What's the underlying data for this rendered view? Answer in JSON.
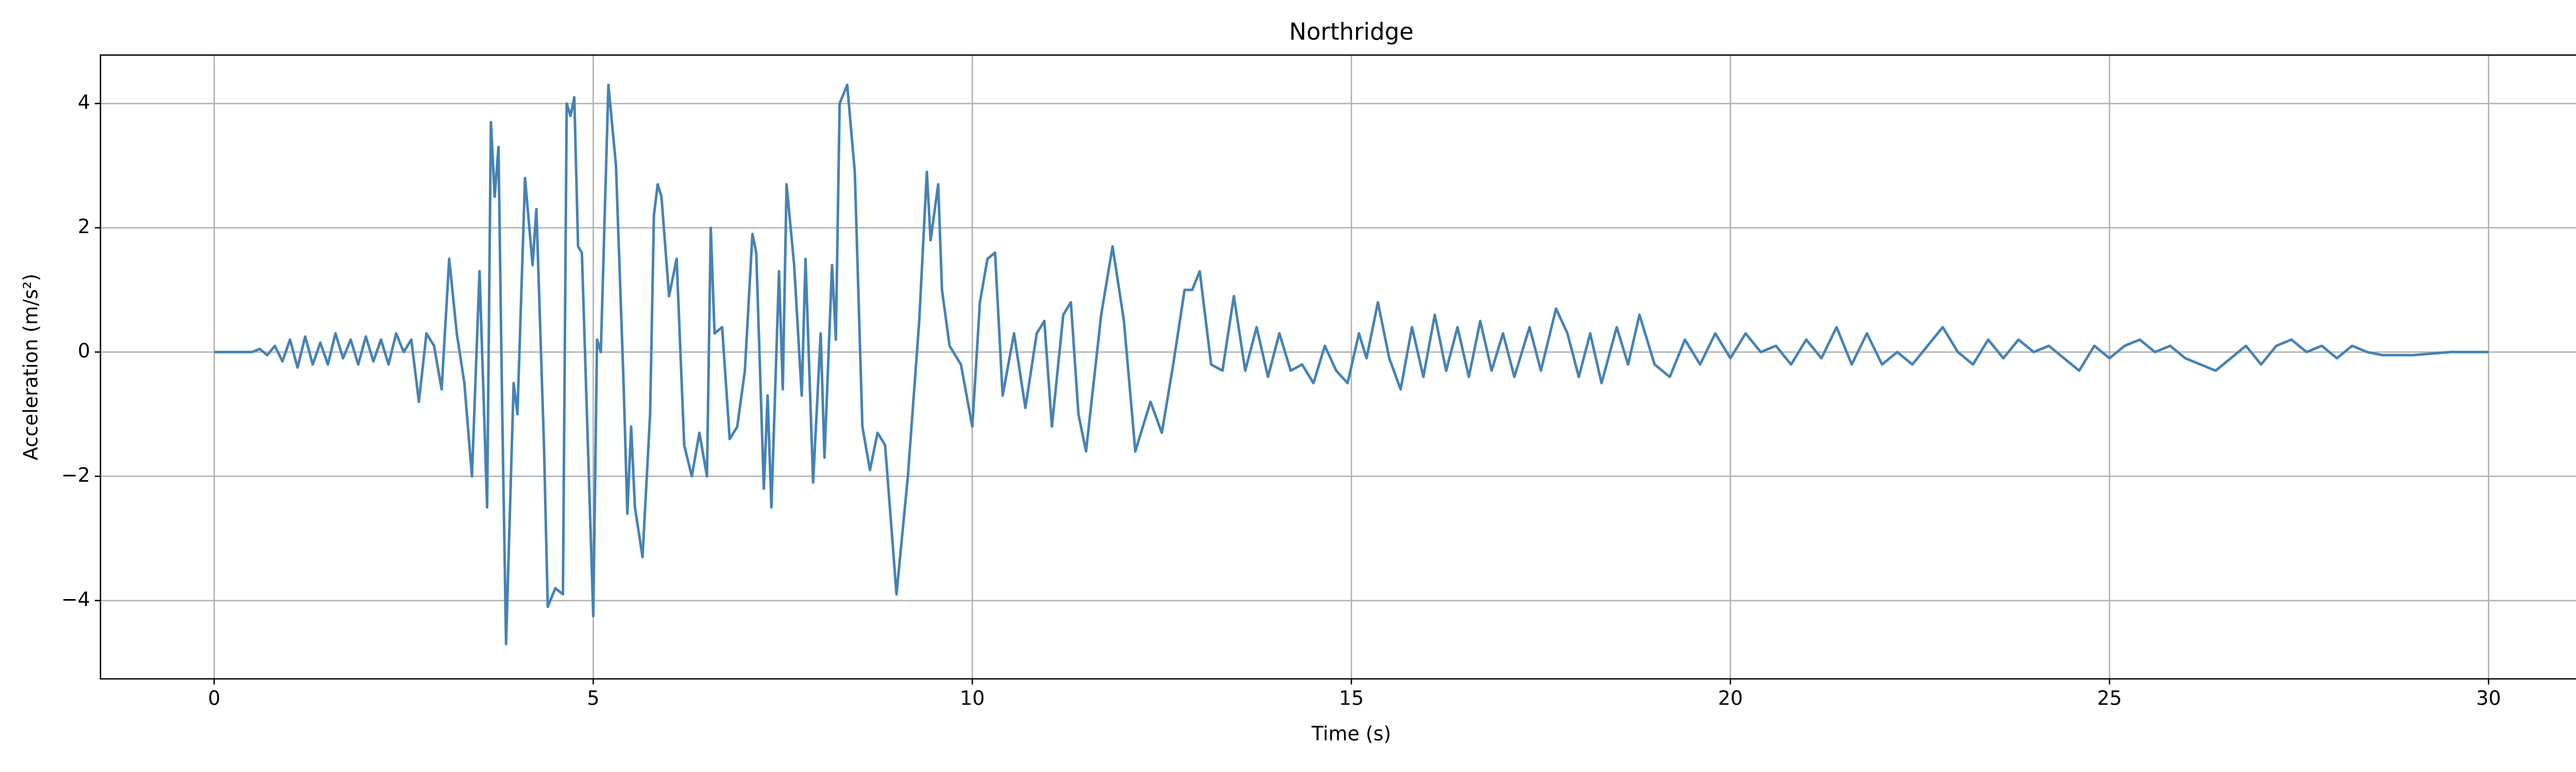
{
  "chart_data": {
    "type": "line",
    "title": "Northridge",
    "xlabel": "Time (s)",
    "ylabel": "Acceleration (m/s²)",
    "xlim": [
      -1.5,
      31.5
    ],
    "ylim": [
      -5.26,
      4.78
    ],
    "xticks": [
      0,
      5,
      10,
      15,
      20,
      25,
      30
    ],
    "yticks": [
      {
        "value": -4,
        "label": "−4"
      },
      {
        "value": -2,
        "label": "−2"
      },
      0,
      2,
      4
    ],
    "grid": true,
    "series": [
      {
        "color": "#4682b4",
        "x": [
          0,
          0.5,
          0.6,
          0.7,
          0.8,
          0.9,
          1.0,
          1.1,
          1.2,
          1.3,
          1.4,
          1.5,
          1.6,
          1.7,
          1.8,
          1.9,
          2.0,
          2.1,
          2.2,
          2.3,
          2.4,
          2.5,
          2.6,
          2.7,
          2.8,
          2.9,
          3.0,
          3.1,
          3.2,
          3.3,
          3.4,
          3.5,
          3.6,
          3.65,
          3.7,
          3.75,
          3.8,
          3.85,
          3.95,
          4.0,
          4.1,
          4.2,
          4.25,
          4.35,
          4.4,
          4.5,
          4.6,
          4.65,
          4.7,
          4.75,
          4.8,
          4.85,
          5.0,
          5.05,
          5.1,
          5.2,
          5.3,
          5.4,
          5.45,
          5.5,
          5.55,
          5.65,
          5.75,
          5.8,
          5.85,
          5.9,
          6.0,
          6.1,
          6.2,
          6.3,
          6.4,
          6.5,
          6.55,
          6.6,
          6.7,
          6.8,
          6.9,
          7.0,
          7.1,
          7.15,
          7.25,
          7.3,
          7.35,
          7.45,
          7.5,
          7.55,
          7.65,
          7.75,
          7.8,
          7.9,
          8.0,
          8.05,
          8.15,
          8.2,
          8.25,
          8.35,
          8.45,
          8.55,
          8.65,
          8.75,
          8.85,
          9.0,
          9.15,
          9.3,
          9.4,
          9.45,
          9.55,
          9.6,
          9.7,
          9.85,
          10.0,
          10.1,
          10.2,
          10.3,
          10.4,
          10.55,
          10.7,
          10.85,
          10.95,
          11.05,
          11.2,
          11.3,
          11.4,
          11.5,
          11.7,
          11.85,
          12.0,
          12.15,
          12.35,
          12.5,
          12.65,
          12.8,
          12.9,
          13.0,
          13.15,
          13.3,
          13.45,
          13.6,
          13.75,
          13.9,
          14.05,
          14.2,
          14.35,
          14.5,
          14.65,
          14.8,
          14.95,
          15.1,
          15.2,
          15.35,
          15.5,
          15.65,
          15.8,
          15.95,
          16.1,
          16.25,
          16.4,
          16.55,
          16.7,
          16.85,
          17.0,
          17.15,
          17.35,
          17.5,
          17.7,
          17.85,
          18.0,
          18.15,
          18.3,
          18.5,
          18.65,
          18.8,
          19.0,
          19.2,
          19.4,
          19.6,
          19.8,
          20.0,
          20.2,
          20.4,
          20.6,
          20.8,
          21.0,
          21.2,
          21.4,
          21.6,
          21.8,
          22.0,
          22.2,
          22.4,
          22.6,
          22.8,
          23.0,
          23.2,
          23.4,
          23.6,
          23.8,
          24.0,
          24.2,
          24.4,
          24.6,
          24.8,
          25.0,
          25.2,
          25.4,
          25.6,
          25.8,
          26.0,
          26.2,
          26.4,
          26.6,
          26.8,
          27.0,
          27.2,
          27.4,
          27.6,
          27.8,
          28.0,
          28.2,
          28.4,
          28.6,
          28.8,
          29.0,
          29.5,
          30
        ],
        "values": [
          0,
          0,
          0.05,
          -0.05,
          0.1,
          -0.15,
          0.2,
          -0.25,
          0.25,
          -0.2,
          0.15,
          -0.2,
          0.3,
          -0.1,
          0.2,
          -0.2,
          0.25,
          -0.15,
          0.2,
          -0.2,
          0.3,
          0.0,
          0.2,
          -0.8,
          0.3,
          0.1,
          -0.6,
          1.5,
          0.3,
          -0.5,
          -2.0,
          1.3,
          -2.5,
          3.7,
          2.5,
          3.3,
          -1.0,
          -4.7,
          -0.5,
          -1.0,
          2.8,
          1.4,
          2.3,
          -1.5,
          -4.1,
          -3.8,
          -3.9,
          4.0,
          3.8,
          4.1,
          1.7,
          1.6,
          -4.25,
          0.2,
          0,
          4.3,
          3.0,
          -0.5,
          -2.6,
          -1.2,
          -2.5,
          -3.3,
          -1.0,
          2.2,
          2.7,
          2.5,
          0.9,
          1.5,
          -1.5,
          -2.0,
          -1.3,
          -2.0,
          2.0,
          0.3,
          0.4,
          -1.4,
          -1.2,
          -0.3,
          1.9,
          1.6,
          -2.2,
          -0.7,
          -2.5,
          1.3,
          -0.6,
          2.7,
          1.4,
          -0.7,
          1.5,
          -2.1,
          0.3,
          -1.7,
          1.4,
          0.2,
          4.0,
          4.3,
          2.9,
          -1.2,
          -1.9,
          -1.3,
          -1.5,
          -3.9,
          -2.0,
          0.5,
          2.9,
          1.8,
          2.7,
          1.0,
          0.1,
          -0.2,
          -1.2,
          0.8,
          1.5,
          1.6,
          -0.7,
          0.3,
          -0.9,
          0.3,
          0.5,
          -1.2,
          0.6,
          0.8,
          -1.0,
          -1.6,
          0.6,
          1.7,
          0.5,
          -1.6,
          -0.8,
          -1.3,
          -0.2,
          1.0,
          1.0,
          1.3,
          -0.2,
          -0.3,
          0.9,
          -0.3,
          0.4,
          -0.4,
          0.3,
          -0.3,
          -0.2,
          -0.5,
          0.1,
          -0.3,
          -0.5,
          0.3,
          -0.1,
          0.8,
          -0.1,
          -0.6,
          0.4,
          -0.4,
          0.6,
          -0.3,
          0.4,
          -0.4,
          0.5,
          -0.3,
          0.3,
          -0.4,
          0.4,
          -0.3,
          0.7,
          0.3,
          -0.4,
          0.3,
          -0.5,
          0.4,
          -0.2,
          0.6,
          -0.2,
          -0.4,
          0.2,
          -0.2,
          0.3,
          -0.1,
          0.3,
          0.0,
          0.1,
          -0.2,
          0.2,
          -0.1,
          0.4,
          -0.2,
          0.3,
          -0.2,
          0.0,
          -0.2,
          0.1,
          0.4,
          0.0,
          -0.2,
          0.2,
          -0.1,
          0.2,
          0.0,
          0.1,
          -0.1,
          -0.3,
          0.1,
          -0.1,
          0.1,
          0.2,
          0.0,
          0.1,
          -0.1,
          -0.2,
          -0.3,
          -0.1,
          0.1,
          -0.2,
          0.1,
          0.2,
          0.0,
          0.1,
          -0.1,
          0.1,
          0.0,
          -0.05,
          -0.05,
          -0.05,
          0,
          0
        ]
      }
    ]
  }
}
